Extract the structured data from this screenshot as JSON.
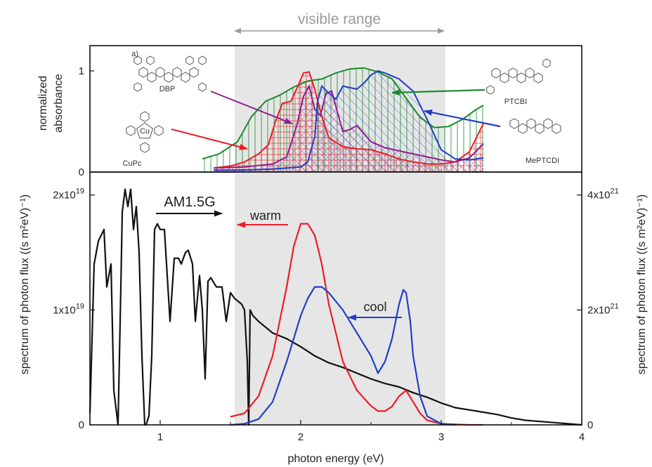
{
  "header": {
    "range_label": "visible range"
  },
  "colors": {
    "black": "#111111",
    "red": "#ee1c24",
    "blue": "#1f3fc8",
    "green": "#1a8a2e",
    "purple": "#8e1f8e",
    "pink": "#f04a78",
    "shade": "#e6e6e6",
    "arrow_gray": "#999999"
  },
  "chart_data": [
    {
      "type": "area",
      "panel": "top",
      "ylabel": [
        "normalized",
        "absorbance"
      ],
      "xlim": [
        0.5,
        4.0
      ],
      "ylim": [
        0,
        1.25
      ],
      "y_ticks": [
        {
          "v": 0,
          "label": "0"
        },
        {
          "v": 1,
          "label": "1"
        }
      ],
      "shaded_range": [
        1.53,
        3.03
      ],
      "molecules": [
        {
          "name": "DBP",
          "color": "#8e1f8e"
        },
        {
          "name": "CuPc",
          "color": "#ee1c24"
        },
        {
          "name": "PTCBI",
          "color": "#1a8a2e"
        },
        {
          "name": "MePTCDI",
          "color": "#1f3fc8"
        }
      ],
      "series": [
        {
          "id": "ptcbi",
          "color": "#1a8a2e",
          "x": [
            1.3,
            1.42,
            1.55,
            1.65,
            1.75,
            1.85,
            1.95,
            2.05,
            2.15,
            2.25,
            2.35,
            2.45,
            2.55,
            2.65,
            2.75,
            2.85,
            2.95,
            3.05,
            3.15,
            3.25,
            3.3
          ],
          "y": [
            0.13,
            0.18,
            0.3,
            0.55,
            0.7,
            0.76,
            0.84,
            0.9,
            0.92,
            0.98,
            1.02,
            1.03,
            0.99,
            0.92,
            0.73,
            0.54,
            0.44,
            0.45,
            0.52,
            0.62,
            0.66
          ]
        },
        {
          "id": "cupc",
          "color": "#ee1c24",
          "x": [
            1.38,
            1.5,
            1.6,
            1.7,
            1.77,
            1.82,
            1.87,
            1.93,
            1.98,
            2.02,
            2.06,
            2.1,
            2.15,
            2.2,
            2.3,
            2.4,
            2.5,
            2.6,
            2.7,
            2.8,
            2.9,
            3.0,
            3.1,
            3.2,
            3.3
          ],
          "y": [
            0.04,
            0.06,
            0.1,
            0.18,
            0.27,
            0.5,
            0.68,
            0.7,
            0.85,
            0.98,
            0.99,
            0.82,
            0.55,
            0.34,
            0.25,
            0.23,
            0.22,
            0.18,
            0.13,
            0.1,
            0.08,
            0.08,
            0.1,
            0.2,
            0.48
          ]
        },
        {
          "id": "dbp",
          "color": "#8e1f8e",
          "x": [
            1.38,
            1.6,
            1.8,
            1.9,
            1.97,
            2.02,
            2.06,
            2.1,
            2.14,
            2.18,
            2.22,
            2.26,
            2.3,
            2.35,
            2.4,
            2.45,
            2.5,
            2.6,
            2.8,
            3.0,
            3.1,
            3.2,
            3.3
          ],
          "y": [
            0.04,
            0.05,
            0.08,
            0.15,
            0.45,
            0.75,
            0.85,
            0.62,
            0.56,
            0.78,
            0.8,
            0.6,
            0.4,
            0.42,
            0.46,
            0.38,
            0.3,
            0.24,
            0.18,
            0.12,
            0.1,
            0.14,
            0.28
          ]
        },
        {
          "id": "meptcdi",
          "color": "#1f3fc8",
          "x": [
            1.38,
            1.6,
            1.8,
            2.0,
            2.05,
            2.1,
            2.12,
            2.15,
            2.2,
            2.25,
            2.3,
            2.4,
            2.45,
            2.5,
            2.55,
            2.6,
            2.7,
            2.8,
            2.9,
            3.0,
            3.1,
            3.2,
            3.3
          ],
          "y": [
            0.02,
            0.02,
            0.03,
            0.05,
            0.1,
            0.35,
            0.7,
            0.85,
            0.78,
            0.72,
            0.85,
            0.82,
            0.88,
            0.96,
            1.0,
            0.98,
            0.92,
            0.8,
            0.52,
            0.22,
            0.13,
            0.12,
            0.14
          ]
        }
      ]
    },
    {
      "type": "line",
      "panel": "bottom",
      "xlabel": "photon energy  (eV)",
      "ylabel_left": "spectrum of photon flux ((s m²eV)⁻¹)",
      "ylabel_right": "spectrum of photon flux ((s m²eV)⁻¹)",
      "xlim": [
        0.5,
        4.0
      ],
      "ylim_left": [
        0,
        2.2e+19
      ],
      "ylim_right": [
        0,
        4.4e+21
      ],
      "x_ticks": [
        1,
        2,
        3,
        4
      ],
      "y_ticks_left": [
        {
          "v": 0,
          "m": "0",
          "e": ""
        },
        {
          "v": 1e+19,
          "m": "1x10",
          "e": "19"
        },
        {
          "v": 2e+19,
          "m": "2x10",
          "e": "19"
        }
      ],
      "y_ticks_right": [
        {
          "v": 0,
          "m": "0",
          "e": ""
        },
        {
          "v": 2e+21,
          "m": "2x10",
          "e": "21"
        },
        {
          "v": 4e+21,
          "m": "4x10",
          "e": "21"
        }
      ],
      "shaded_range": [
        1.53,
        3.03
      ],
      "labels": {
        "am": "AM1.5G",
        "warm": "warm",
        "cool": "cool"
      },
      "series": [
        {
          "name": "AM1.5G",
          "axis": "left",
          "color": "#111111",
          "x": [
            0.5,
            0.53,
            0.56,
            0.6,
            0.62,
            0.65,
            0.67,
            0.7,
            0.72,
            0.73,
            0.75,
            0.77,
            0.79,
            0.81,
            0.83,
            0.85,
            0.87,
            0.89,
            0.9,
            0.92,
            0.94,
            0.96,
            0.98,
            1.0,
            1.03,
            1.07,
            1.1,
            1.13,
            1.15,
            1.18,
            1.2,
            1.23,
            1.25,
            1.28,
            1.3,
            1.32,
            1.34,
            1.36,
            1.4,
            1.44,
            1.47,
            1.5,
            1.53,
            1.58,
            1.6,
            1.62,
            1.63,
            1.64,
            1.66,
            1.7,
            1.8,
            1.9,
            2.0,
            2.1,
            2.2,
            2.3,
            2.4,
            2.5,
            2.6,
            2.7,
            2.8,
            2.9,
            3.0,
            3.1,
            3.2,
            3.3,
            3.4,
            3.5,
            3.6,
            3.7,
            3.8,
            3.9,
            4.0
          ],
          "y": [
            1e+18,
            1.4e+19,
            1.6e+19,
            1.7e+19,
            1.2e+19,
            1.4e+19,
            3e+18,
            0,
            1.2e+19,
            1.85e+19,
            2.05e+19,
            1.9e+19,
            2.05e+19,
            1.7e+19,
            1.9e+19,
            1.5e+19,
            6e+18,
            0,
            0,
            8e+17,
            6e+18,
            1.7e+19,
            1.75e+19,
            1.7e+19,
            1.7e+19,
            9e+18,
            1.45e+19,
            1.45e+19,
            1.4e+19,
            1.5e+19,
            1.52e+19,
            1.4e+19,
            9e+18,
            1.3e+19,
            1e+19,
            4e+18,
            1.25e+19,
            1.28e+19,
            1.2e+19,
            1.2e+19,
            9e+18,
            1.15e+19,
            1.1e+19,
            1.05e+19,
            1e+19,
            5.5e+18,
            0,
            1e+19,
            9.5e+18,
            9e+18,
            8e+18,
            7.5e+18,
            6.8e+18,
            6e+18,
            5.4e+18,
            5e+18,
            4.5e+18,
            4e+18,
            3.6e+18,
            3.3e+18,
            2.8e+18,
            2.4e+18,
            1.9e+18,
            1.5e+18,
            1.3e+18,
            1.1e+18,
            9e+17,
            6e+17,
            4e+17,
            3e+17,
            2e+17,
            1e+17,
            0
          ]
        },
        {
          "name": "warm",
          "axis": "right",
          "color": "#ee1c24",
          "x": [
            1.5,
            1.6,
            1.7,
            1.8,
            1.9,
            1.95,
            2.0,
            2.05,
            2.1,
            2.15,
            2.2,
            2.3,
            2.4,
            2.5,
            2.55,
            2.6,
            2.65,
            2.7,
            2.75,
            2.8,
            2.85,
            2.9,
            3.0,
            3.1,
            3.2,
            3.3
          ],
          "y": [
            1.4e+20,
            2e+20,
            5e+20,
            1.2e+21,
            2.4e+21,
            3.1e+21,
            3.5e+21,
            3.5e+21,
            3.3e+21,
            2.8e+21,
            2.1e+21,
            1.1e+21,
            6e+20,
            3.3e+20,
            2.4e+20,
            2.4e+20,
            3.2e+20,
            5e+20,
            6e+20,
            4e+20,
            2e+20,
            8e+19,
            2e+19,
            1e+19,
            0,
            0
          ]
        },
        {
          "name": "cool",
          "axis": "right",
          "color": "#1f3fc8",
          "x": [
            1.5,
            1.6,
            1.7,
            1.8,
            1.9,
            1.95,
            2.0,
            2.05,
            2.1,
            2.15,
            2.2,
            2.3,
            2.4,
            2.5,
            2.55,
            2.6,
            2.65,
            2.7,
            2.73,
            2.75,
            2.78,
            2.8,
            2.85,
            2.9,
            3.0,
            3.1
          ],
          "y": [
            0,
            2e+19,
            1e+20,
            4e+20,
            1.1e+21,
            1.5e+21,
            1.9e+21,
            2.2e+21,
            2.4e+21,
            2.4e+21,
            2.3e+21,
            2e+21,
            1.6e+21,
            1.2e+21,
            9e+20,
            1.1e+21,
            1.5e+21,
            2.1e+21,
            2.35e+21,
            2.3e+21,
            1.8e+21,
            1.2e+21,
            5e+20,
            1.5e+20,
            2e+19,
            0
          ]
        }
      ]
    }
  ]
}
